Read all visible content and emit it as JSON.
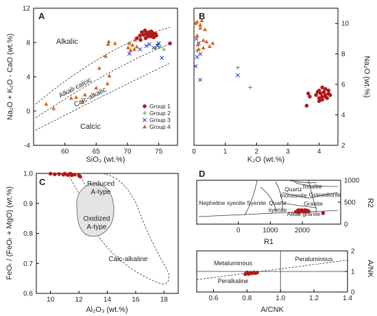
{
  "colors": {
    "g1": "#b11a1a",
    "g2": "#2aa84a",
    "g3": "#2233bb",
    "g4": "#d3661c",
    "shade": "#e4e4e4"
  },
  "chart_data": [
    {
      "id": "A",
      "type": "scatter",
      "panel_label": "A",
      "xlabel": "SiO₂ (wt.%)",
      "ylabel": "Na₂O + K₂O - CaO (wt.%)",
      "xlim": [
        55,
        78
      ],
      "ylim": [
        -4,
        12
      ],
      "x_ticks": [
        "60",
        "65",
        "70",
        "75"
      ],
      "y_ticks": [
        "-4",
        "0",
        "4",
        "8",
        "12"
      ],
      "field_labels": [
        "Alkalic",
        "Alkali-calcic",
        "Calc-alkalic",
        "Calcic"
      ],
      "legend_title": "",
      "legend": [
        "Group 1",
        "Group 2",
        "Group 3",
        "Group 4"
      ],
      "series": [
        {
          "name": "Group 1",
          "marker": "circle",
          "x": [
            71.5,
            72,
            72.3,
            72.6,
            72.8,
            73,
            73.2,
            73.4,
            73.6,
            73.8,
            74,
            74.2,
            74.5,
            72.1,
            72.9,
            73.3,
            73.7,
            74.1,
            74.6,
            76.8
          ],
          "y": [
            8.5,
            8.8,
            9.2,
            8.9,
            9.4,
            9.1,
            8.7,
            9.2,
            8.9,
            9.3,
            8.8,
            8.6,
            9,
            8.3,
            8.5,
            8.9,
            8.7,
            9.1,
            8.8,
            7.9
          ]
        },
        {
          "name": "Group 2",
          "marker": "plus",
          "x": [
            74.5,
            75.2,
            75.8,
            74.8
          ],
          "y": [
            7.3,
            7.5,
            7.2,
            7.8
          ]
        },
        {
          "name": "Group 3",
          "marker": "x",
          "x": [
            70.3,
            72,
            73,
            74.2,
            74.8,
            75,
            73.5,
            75.5
          ],
          "y": [
            6.7,
            7.2,
            7.6,
            7.4,
            7.6,
            7.9,
            7.8,
            6.2
          ]
        },
        {
          "name": "Group 4",
          "marker": "triangle",
          "x": [
            57,
            58.2,
            61,
            61.8,
            62.8,
            63.2,
            65,
            66.8,
            67.1,
            66.9,
            68,
            70.1,
            70.3,
            70.5,
            70.8,
            71.1,
            71.2,
            71.5,
            67,
            66.5,
            65.5
          ],
          "y": [
            0.8,
            0.3,
            1.5,
            1.6,
            1,
            1.9,
            2.7,
            3.2,
            4.1,
            7.8,
            7.9,
            7.4,
            7.9,
            7.1,
            7.7,
            7.2,
            8.3,
            7.5,
            8.1,
            6.4,
            5
          ]
        }
      ]
    },
    {
      "id": "B",
      "type": "scatter",
      "panel_label": "B",
      "xlabel": "K₂O (wt.%)",
      "ylabel": "Na₂O (wt.%)",
      "xlim": [
        0,
        4.6
      ],
      "ylim": [
        2,
        11
      ],
      "x_ticks": [
        "0",
        "1",
        "2",
        "3",
        "4"
      ],
      "y_ticks": [
        "2",
        "4",
        "6",
        "8",
        "10"
      ],
      "series": [
        {
          "name": "Group 1",
          "marker": "circle",
          "x": [
            3.6,
            3.65,
            3.7,
            3.9,
            4,
            4,
            4.05,
            4.1,
            4.1,
            4.15,
            4.2,
            4.2,
            4.25,
            4.3,
            4.3,
            4,
            4.1,
            4.2,
            3.95,
            4.35
          ],
          "y": [
            4.6,
            5.4,
            5.2,
            5.3,
            5.1,
            5.6,
            5.4,
            5.2,
            5.8,
            5.5,
            5.3,
            5.7,
            5.1,
            5.4,
            5.6,
            4.9,
            5,
            5.2,
            5.5,
            5.3
          ]
        },
        {
          "name": "Group 2",
          "marker": "plus",
          "x": [
            0.1,
            1.4,
            1.8
          ],
          "y": [
            8.2,
            7.1,
            5.8
          ]
        },
        {
          "name": "Group 3",
          "marker": "x",
          "x": [
            0.05,
            0.1,
            0.15,
            0.2,
            0.08,
            1.4,
            0.2
          ],
          "y": [
            7.2,
            7.8,
            8.7,
            8,
            9,
            6.6,
            6.3
          ]
        },
        {
          "name": "Group 4",
          "marker": "triangle",
          "x": [
            0.05,
            0.1,
            0.12,
            0.15,
            0.2,
            0.25,
            0.3,
            0.35,
            0.4,
            0.5,
            0.6,
            0.2,
            0.3,
            0.1
          ],
          "y": [
            10,
            9.2,
            8.6,
            8.3,
            9.7,
            10.2,
            8.9,
            9.6,
            8.8,
            8.5,
            8.7,
            9.9,
            8.4,
            10.1
          ]
        }
      ]
    },
    {
      "id": "C",
      "type": "scatter",
      "panel_label": "C",
      "xlabel": "Al₂O₃ (wt.%)",
      "ylabel": "FeOₜ / (FeOₜ + MgO) (wt.%)",
      "xlim": [
        9,
        19
      ],
      "ylim": [
        0.6,
        1.0
      ],
      "x_ticks": [
        "10",
        "12",
        "14",
        "16",
        "18"
      ],
      "y_ticks": [
        "0.6",
        "0.7",
        "0.8",
        "0.9",
        "1.0"
      ],
      "field_labels": [
        "Reduced",
        "A-type",
        "Oxidized",
        "A-type",
        "Calc-alkaline"
      ],
      "series": [
        {
          "name": "Group 1",
          "marker": "circle",
          "x": [
            10,
            10.3,
            10.6,
            10.9,
            11,
            11.2,
            11.3,
            11.5,
            11.7,
            12,
            12.1,
            11.4
          ],
          "y": [
            0.999,
            0.997,
            0.998,
            0.996,
            0.999,
            0.995,
            0.997,
            0.994,
            0.996,
            0.993,
            0.989,
            0.999
          ]
        }
      ]
    },
    {
      "id": "D",
      "type": "scatter",
      "panel_label": "D",
      "xlabel": "R1",
      "ylabel": "R2",
      "xlim": [
        -1300,
        3200
      ],
      "ylim": [
        0,
        1000
      ],
      "x_ticks": [
        "0",
        "1000",
        "2000"
      ],
      "y_ticks": [
        "0",
        "500",
        "1000"
      ],
      "field_labels": [
        "Nepheline syenite",
        "Syenite",
        "Quartz",
        "syenite",
        "Quartz",
        "monzonite",
        "Tonalite",
        "Granodiorite",
        "Granite",
        "Alkali granite"
      ],
      "series": [
        {
          "name": "Group 1",
          "marker": "circle",
          "x": [
            1800,
            1850,
            1900,
            1950,
            2000,
            2050,
            2100,
            2150,
            2200,
            1880,
            1980,
            2080,
            2650
          ],
          "y": [
            280,
            300,
            270,
            310,
            290,
            300,
            280,
            310,
            290,
            320,
            320,
            320,
            250
          ]
        }
      ]
    },
    {
      "id": "E",
      "type": "scatter",
      "panel_label": "",
      "xlabel": "A/CNK",
      "ylabel": "A/NK",
      "xlim": [
        0.5,
        1.4
      ],
      "ylim": [
        0,
        2
      ],
      "x_ticks": [
        "0.6",
        "0.8",
        "1.0",
        "1.2",
        "1.4"
      ],
      "y_ticks": [
        "0",
        "1",
        "2"
      ],
      "field_labels": [
        "Metaluminous",
        "Peraluminous",
        "Peralkaline"
      ],
      "series": [
        {
          "name": "Group 1",
          "marker": "circle",
          "x": [
            0.79,
            0.8,
            0.81,
            0.82,
            0.83,
            0.84,
            0.85,
            0.86,
            0.8
          ],
          "y": [
            0.87,
            0.92,
            0.88,
            0.93,
            0.91,
            0.95,
            0.92,
            0.94,
            0.95
          ]
        }
      ]
    }
  ]
}
